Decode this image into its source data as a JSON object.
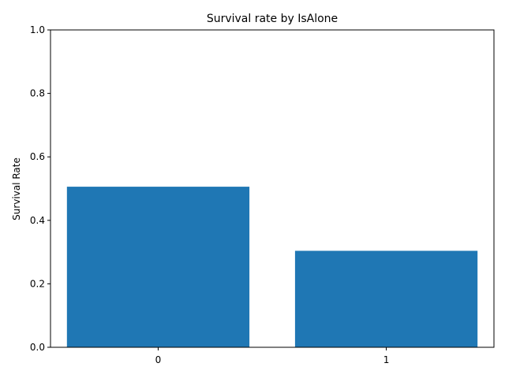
{
  "chart_data": {
    "type": "bar",
    "title": "Survival rate by IsAlone",
    "xlabel": "",
    "ylabel": "Survival Rate",
    "categories": [
      "0",
      "1"
    ],
    "values": [
      0.506,
      0.304
    ],
    "ylim": [
      0,
      1.0
    ],
    "yticks": [
      "0.0",
      "0.2",
      "0.4",
      "0.6",
      "0.8",
      "1.0"
    ],
    "bar_color": "#1f77b4",
    "grid": false
  }
}
